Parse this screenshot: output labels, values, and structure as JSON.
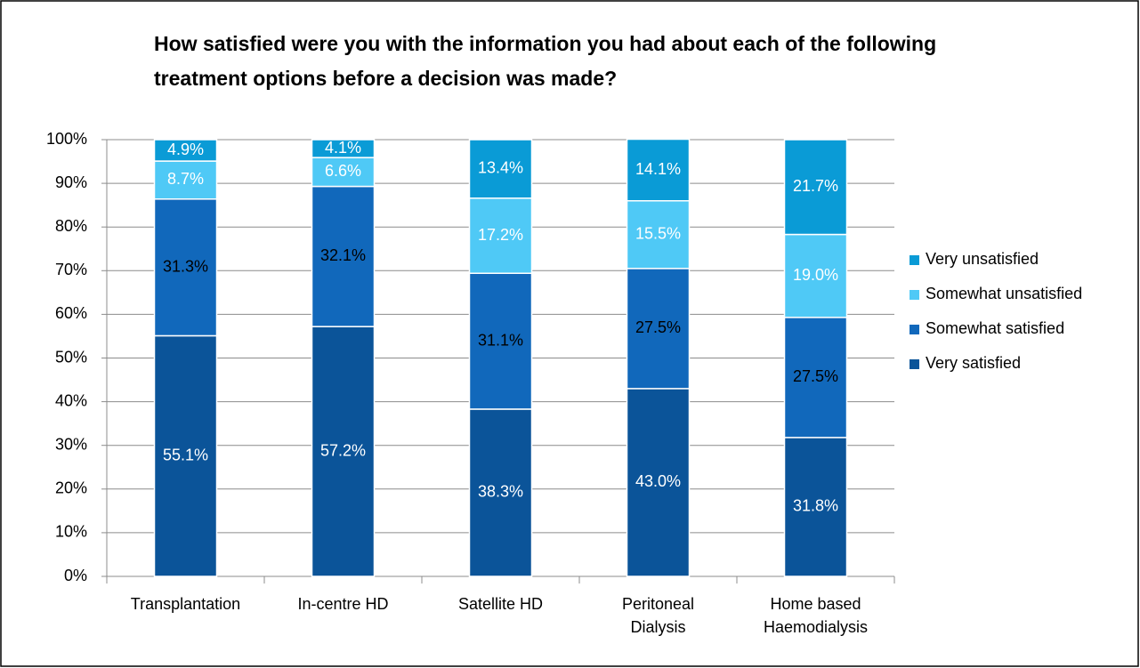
{
  "chart_data": {
    "type": "stacked_bar",
    "title": "How satisfied were you with the information you had about each of the following treatment options before a decision was made?",
    "categories": [
      "Transplantation",
      "In-centre HD",
      "Satellite HD",
      "Peritoneal Dialysis",
      "Home based Haemodialysis"
    ],
    "series": [
      {
        "name": "Very satisfied",
        "color": "#0b5499",
        "values": [
          55.1,
          57.2,
          38.3,
          43.0,
          31.8
        ],
        "value_labels": [
          "55.1%",
          "57.2%",
          "38.3%",
          "43.0%",
          "31.8%"
        ]
      },
      {
        "name": "Somewhat satisfied",
        "color": "#1168bb",
        "values": [
          31.3,
          32.1,
          31.1,
          27.5,
          27.5
        ],
        "value_labels": [
          "31.3%",
          "32.1%",
          "31.1%",
          "27.5%",
          "27.5%"
        ]
      },
      {
        "name": "Somewhat unsatisfied",
        "color": "#4fc9f6",
        "values": [
          8.7,
          6.6,
          17.2,
          15.5,
          19.0
        ],
        "value_labels": [
          "8.7%",
          "6.6%",
          "17.2%",
          "15.5%",
          "19.0%"
        ]
      },
      {
        "name": "Very unsatisfied",
        "color": "#0a9bd6",
        "values": [
          4.9,
          4.1,
          13.4,
          14.1,
          21.7
        ],
        "value_labels": [
          "4.9%",
          "4.1%",
          "13.4%",
          "14.1%",
          "21.7%"
        ]
      }
    ],
    "ylim": [
      0,
      100
    ],
    "yticks": [
      {
        "value": 0,
        "label": "0%"
      },
      {
        "value": 10,
        "label": "10%"
      },
      {
        "value": 20,
        "label": "20%"
      },
      {
        "value": 30,
        "label": "30%"
      },
      {
        "value": 40,
        "label": "40%"
      },
      {
        "value": 50,
        "label": "50%"
      },
      {
        "value": 60,
        "label": "60%"
      },
      {
        "value": 70,
        "label": "70%"
      },
      {
        "value": 80,
        "label": "80%"
      },
      {
        "value": 90,
        "label": "90%"
      },
      {
        "value": 100,
        "label": "100%"
      }
    ],
    "grid": true,
    "legend": "right"
  }
}
